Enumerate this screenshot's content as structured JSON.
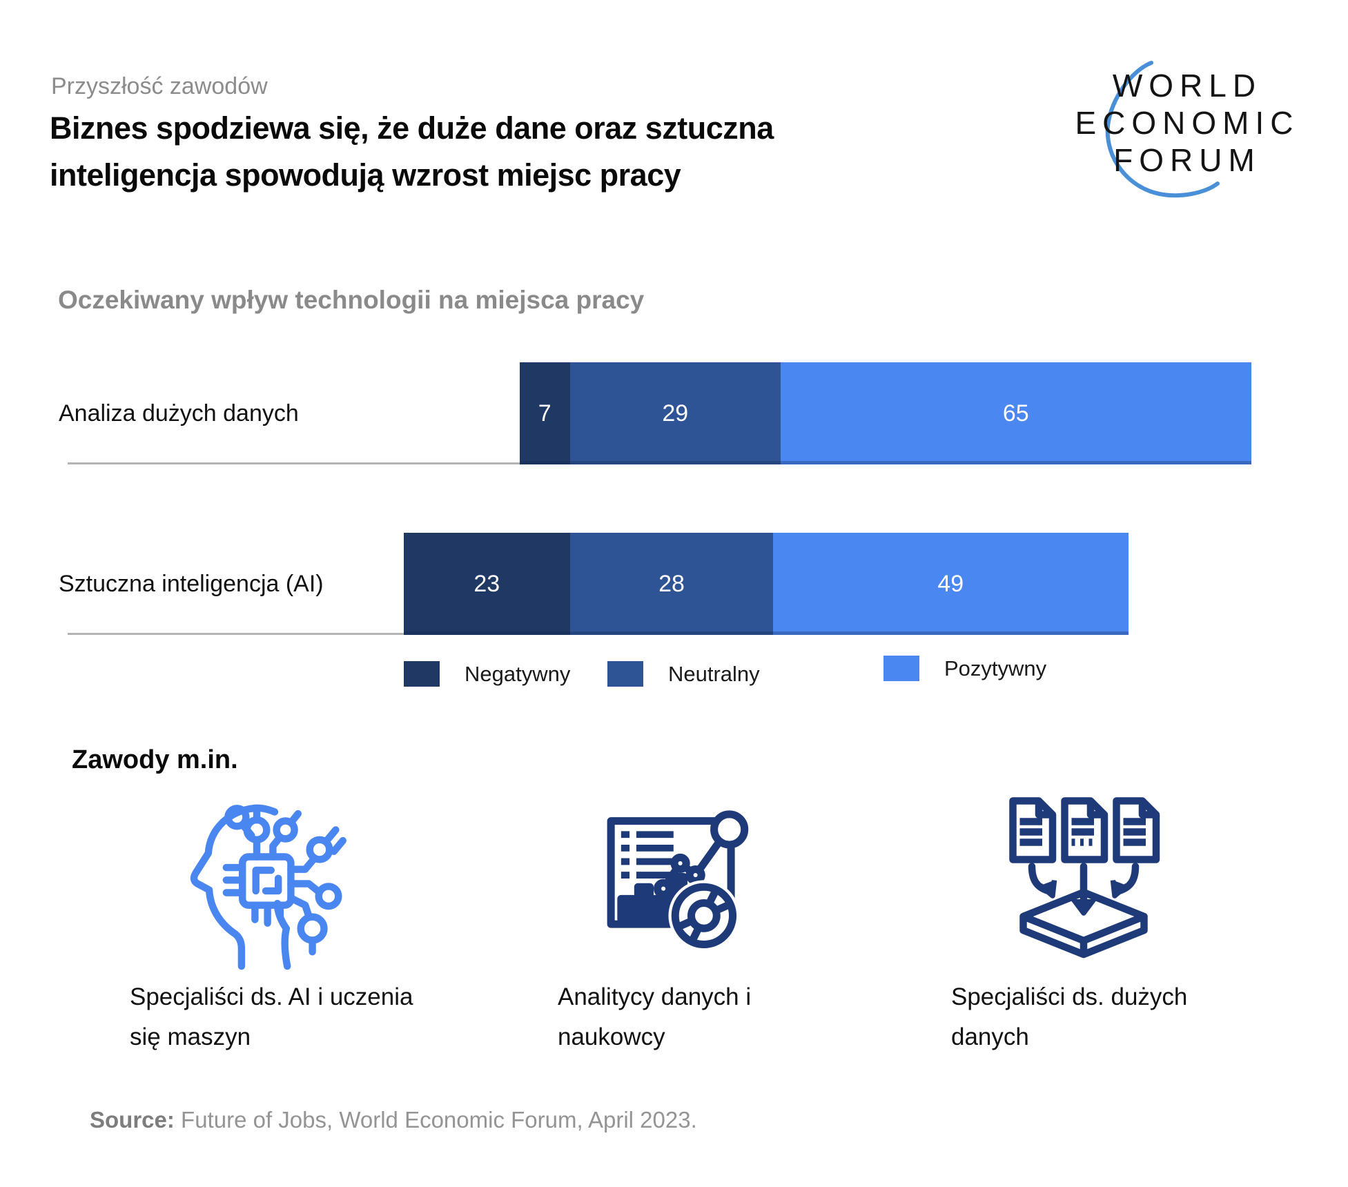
{
  "header": {
    "kicker": "Przyszłość zawodów",
    "title": "Biznes spodziewa się, że duże dane oraz sztuczna\ninteligencja spowodują wzrost miejsc pracy"
  },
  "logo": {
    "line1": "WORLD",
    "line2": "ECONOMIC",
    "line3": "FORUM"
  },
  "chart_data": {
    "type": "bar",
    "orientation": "horizontal",
    "stacked": true,
    "diverging": true,
    "title": "Oczekiwany wpływ technologii na miejsca pracy",
    "categories": [
      "Analiza dużych danych",
      "Sztuczna inteligencja (AI)"
    ],
    "series": [
      {
        "name": "Negatywny",
        "color": "#1f3864",
        "values": [
          7,
          23
        ]
      },
      {
        "name": "Neutralny",
        "color": "#2f5496",
        "values": [
          29,
          28
        ]
      },
      {
        "name": "Pozytywny",
        "color": "#4a87f0",
        "values": [
          65,
          49
        ]
      }
    ],
    "legend_position": "bottom",
    "value_labels_shown": true
  },
  "occupations": {
    "heading": "Zawody m.in.",
    "items": [
      {
        "icon": "ai-machine-learning-head-icon",
        "label": "Specjaliści ds. AI i uczenia\nsię maszyn"
      },
      {
        "icon": "data-analytics-dashboard-icon",
        "label": "Analitycy danych i\nnaukowcy"
      },
      {
        "icon": "big-data-documents-icon",
        "label": "Specjaliści ds. dużych\ndanych"
      }
    ]
  },
  "source": {
    "label": "Source:",
    "text": " Future of Jobs, World Economic Forum, April 2023."
  },
  "colors": {
    "negative": "#1f3864",
    "neutral": "#2f5496",
    "positive": "#4a87f0",
    "logo_arc": "#4a90d8",
    "icon_light_blue": "#4a86f0",
    "icon_navy": "#1e3a78",
    "muted_text": "#8c8c8c"
  }
}
